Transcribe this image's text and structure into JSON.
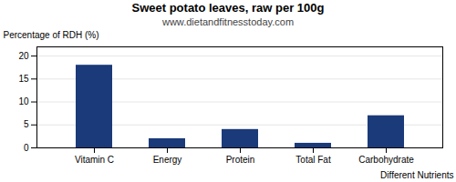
{
  "chart_data": {
    "type": "bar",
    "title": "Sweet potato leaves, raw per 100g",
    "subtitle": "www.dietandfitnesstoday.com",
    "xlabel": "Different Nutrients",
    "ylabel": "Percentage of RDH (%)",
    "categories": [
      "Vitamin C",
      "Energy",
      "Protein",
      "Total Fat",
      "Carbohydrate"
    ],
    "values": [
      18,
      2,
      4,
      1,
      7
    ],
    "color": "#1a3a7a",
    "ylim": [
      0,
      22
    ],
    "yticks": [
      0,
      5,
      10,
      15,
      20
    ],
    "grid": true
  }
}
